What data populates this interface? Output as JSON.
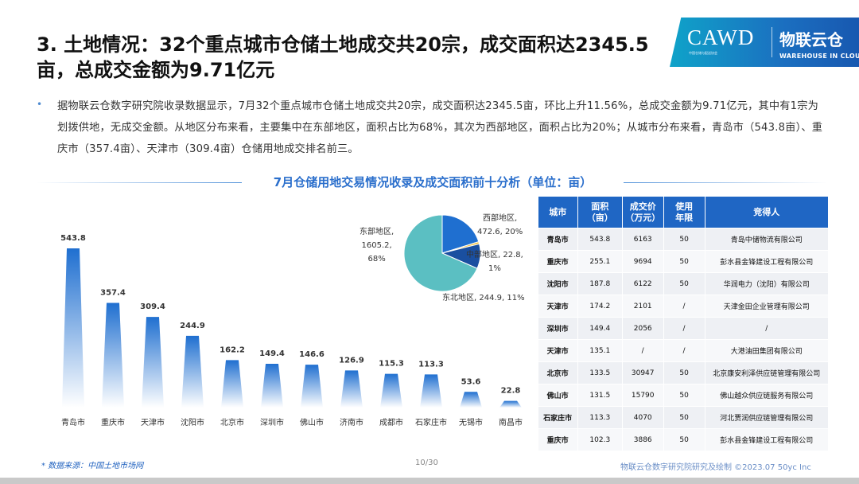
{
  "header": {
    "title": "3. 土地情况：32个重点城市仓储土地成交共20宗，成交面积达2345.5亩，总成交金额为9.71亿元"
  },
  "logo": {
    "brand_en": "CAWD",
    "brand_sub": "中国仓储与配送协会",
    "brand_cn": "物联云仓",
    "brand_tagline": "WAREHOUSE IN CLOUD"
  },
  "summary": {
    "bullet": "•",
    "text": "据物联云仓数字研究院收录数据显示，7月32个重点城市仓储土地成交共20宗，成交面积达2345.5亩，环比上升11.56%，总成交金额为9.71亿元，其中有1宗为划拨供地，无成交金额。从地区分布来看，主要集中在东部地区，面积占比为68%，其次为西部地区，面积占比为20%；从城市分布来看，青岛市（543.8亩）、重庆市（357.4亩）、天津市（309.4亩）仓储用地成交排名前三。"
  },
  "chart_data": [
    {
      "type": "bar",
      "title": "7月仓储用地交易情况收录及成交面积前十分析（单位：亩）",
      "categories": [
        "青岛市",
        "重庆市",
        "天津市",
        "沈阳市",
        "北京市",
        "深圳市",
        "佛山市",
        "济南市",
        "成都市",
        "石家庄市",
        "无锡市",
        "南昌市"
      ],
      "values": [
        543.8,
        357.4,
        309.4,
        244.9,
        162.2,
        149.4,
        146.6,
        126.9,
        115.3,
        113.3,
        53.6,
        22.8
      ],
      "value_labels": [
        "543.8",
        "357.4",
        "309.4",
        "244.9",
        "162.2",
        "149.4",
        "146.6",
        "126.9",
        "115.3",
        "113.3",
        "53.6",
        "22.8"
      ],
      "ylim": [
        0,
        560
      ],
      "color": "#1f6fd0"
    },
    {
      "type": "pie",
      "slices": [
        {
          "name": "东部地区",
          "value": 1605.2,
          "percent": 68,
          "color": "#5bbfc2",
          "label_lines": [
            "东部地区,",
            "1605.2,",
            "68%"
          ]
        },
        {
          "name": "西部地区",
          "value": 472.6,
          "percent": 20,
          "color": "#1f6fd0",
          "label_lines": [
            "西部地区,",
            "472.6, 20%"
          ]
        },
        {
          "name": "中部地区",
          "value": 22.8,
          "percent": 1,
          "color": "#f2c038",
          "label_lines": [
            "中部地区, 22.8,",
            "1%"
          ]
        },
        {
          "name": "东北地区",
          "value": 244.9,
          "percent": 11,
          "color": "#1a4fa0",
          "label_lines": [
            "东北地区, 244.9, 11%"
          ]
        }
      ]
    }
  ],
  "table": {
    "headers": [
      "城市",
      "面积\n（亩）",
      "成交价\n（万元）",
      "使用\n年限",
      "竞得人"
    ],
    "rows": [
      [
        "青岛市",
        "543.8",
        "6163",
        "50",
        "青岛中储物流有限公司"
      ],
      [
        "重庆市",
        "255.1",
        "9694",
        "50",
        "彭水县金锋建设工程有限公司"
      ],
      [
        "沈阳市",
        "187.8",
        "6122",
        "50",
        "华润电力（沈阳）有限公司"
      ],
      [
        "天津市",
        "174.2",
        "2101",
        "/",
        "天津金田企业管理有限公司"
      ],
      [
        "深圳市",
        "149.4",
        "2056",
        "/",
        "/"
      ],
      [
        "天津市",
        "135.1",
        "/",
        "/",
        "大港油田集团有限公司"
      ],
      [
        "北京市",
        "133.5",
        "30947",
        "50",
        "北京康安利泽供应链管理有限公司"
      ],
      [
        "佛山市",
        "131.5",
        "15790",
        "50",
        "佛山越众供应链服务有限公司"
      ],
      [
        "石家庄市",
        "113.3",
        "4070",
        "50",
        "河北贾润供应链管理有限公司"
      ],
      [
        "重庆市",
        "102.3",
        "3886",
        "50",
        "彭水县金锋建设工程有限公司"
      ]
    ]
  },
  "footer": {
    "source": "* 数据来源：中国土地市场网",
    "page": "10/30",
    "credit": "物联云仓数字研究院研究及绘制   ©2023.07  50yc Inc"
  }
}
